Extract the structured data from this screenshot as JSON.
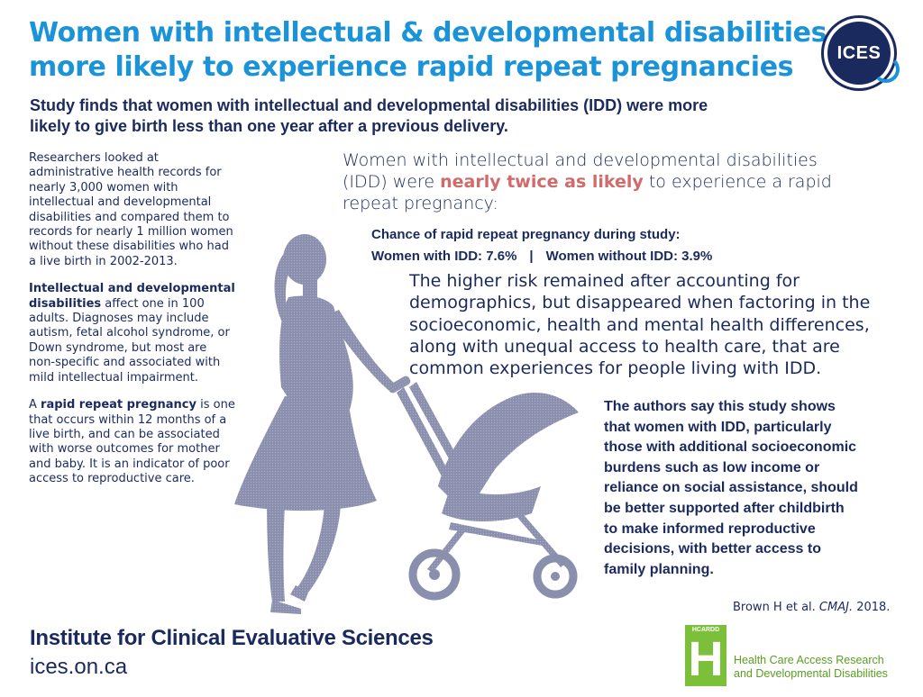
{
  "header": {
    "title_line1": "Women with intellectual & developmental disabilities",
    "title_line2": "more likely to experience rapid repeat pregnancies",
    "logo_text": "ICES",
    "subtitle_line1": "Study finds that women with intellectual and developmental disabilities (IDD) were more",
    "subtitle_line2": "likely to give birth less than one year after a previous delivery."
  },
  "left_column": {
    "p1": [
      "Researchers looked at",
      "administrative health records for",
      "nearly 3,000 women with",
      "intellectual and developmental",
      "disabilities and compared them to",
      "records for nearly 1 million women",
      "without these disabilities who had",
      "a live birth in 2002-2013."
    ],
    "p2_bold_1": "Intellectual and developmental",
    "p2_bold_2": "disabilities",
    "p2_rest_2": " affect one in 100",
    "p2_lines": [
      "adults. Diagnoses may include",
      "autism, fetal alcohol syndrome, or",
      "Down syndrome, but most are",
      "non-specific and associated with",
      "mild intellectual impairment."
    ],
    "p3_pre": "A ",
    "p3_bold": "rapid repeat pregnancy",
    "p3_post": " is one",
    "p3_lines": [
      "that occurs within 12 months of a",
      "live birth, and can be associated",
      "with worse outcomes for mother",
      "and baby. It is an indicator of poor",
      "access to reproductive care."
    ]
  },
  "key_finding": {
    "line1": "Women with intellectual and developmental disabilities",
    "line2_pre": "(IDD) were ",
    "line2_highlight": "nearly twice as likely",
    "line2_post": " to experience a rapid",
    "line3": "repeat pregnancy:",
    "highlight_color": "#d16a6a"
  },
  "stats": {
    "heading": "Chance of rapid repeat pregnancy during study:",
    "with_idd": "Women with IDD: 7.6%",
    "separator": "|",
    "without_idd": "Women without IDD: 3.9%"
  },
  "risk_paragraph": [
    "The higher risk remained after accounting for",
    "demographics, but disappeared when factoring in the",
    "socioeconomic, health and mental health differences,",
    "along with unequal access to health care, that are",
    "common experiences for people living with IDD."
  ],
  "authors_paragraph": [
    "The authors say this study shows",
    "that women with IDD, particularly",
    "those with additional socioeconomic",
    "burdens such as low income or",
    "reliance on social assistance, should",
    "be better supported after childbirth",
    "to make informed reproductive",
    "decisions, with better access to",
    "family planning."
  ],
  "citation": {
    "author": "Brown H et al. ",
    "journal": "CMAJ.",
    "year": " 2018."
  },
  "footer": {
    "org": "Institute for Clinical Evaluative Sciences",
    "url": "ices.on.ca",
    "partner_small": "HCARDD",
    "partner_letter": "H",
    "partner_line1": "Health Care Access Research",
    "partner_line2": "and Developmental Disabilities"
  },
  "colors": {
    "title_blue": "#1b93d8",
    "navy": "#1a2a5e",
    "highlight_red": "#d16a6a",
    "silhouette": "#8a8fad",
    "hcardd_green": "#7bbf3a"
  },
  "icons": [
    "woman-with-stroller-illustration",
    "ices-logo",
    "hcardd-logo"
  ]
}
